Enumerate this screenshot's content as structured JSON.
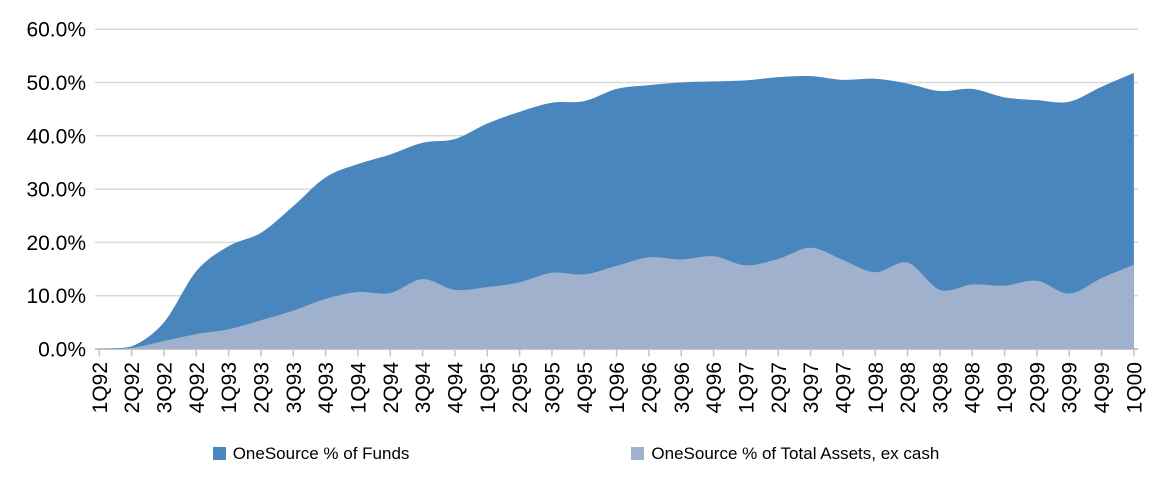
{
  "chart_data": {
    "type": "area",
    "overlap": true,
    "title": "",
    "xlabel": "",
    "ylabel": "",
    "ylim": [
      0,
      60
    ],
    "grid": true,
    "legend_position": "bottom",
    "categories": [
      "1Q92",
      "2Q92",
      "3Q92",
      "4Q92",
      "1Q93",
      "2Q93",
      "3Q93",
      "4Q93",
      "1Q94",
      "2Q94",
      "3Q94",
      "4Q94",
      "1Q95",
      "2Q95",
      "3Q95",
      "4Q95",
      "1Q96",
      "2Q96",
      "3Q96",
      "4Q96",
      "1Q97",
      "2Q97",
      "3Q97",
      "4Q97",
      "1Q98",
      "2Q98",
      "3Q98",
      "4Q98",
      "1Q99",
      "2Q99",
      "3Q99",
      "4Q99",
      "1Q00"
    ],
    "series": [
      {
        "name": "OneSource % of Funds",
        "color": "#4A86BE",
        "values": [
          0,
          0.5,
          5,
          14.6,
          19.3,
          21.8,
          26.8,
          32.2,
          34.7,
          36.5,
          38.7,
          39.4,
          42.3,
          44.5,
          46.2,
          46.5,
          48.8,
          49.5,
          50,
          50.2,
          50.4,
          51,
          51.2,
          50.5,
          50.7,
          49.8,
          48.4,
          48.8,
          47.2,
          46.7,
          46.4,
          49.2,
          51.8
        ]
      },
      {
        "name": "OneSource % of Total Assets, ex cash",
        "color": "#A0B1CE",
        "values": [
          0,
          0.2,
          1.5,
          2.8,
          3.7,
          5.4,
          7.2,
          9.4,
          10.7,
          10.5,
          13.1,
          11.1,
          11.6,
          12.5,
          14.3,
          14,
          15.6,
          17.2,
          16.8,
          17.4,
          15.7,
          16.9,
          19,
          16.7,
          14.4,
          16.2,
          11.1,
          12.1,
          11.9,
          12.8,
          10.4,
          13.3,
          15.8
        ]
      }
    ],
    "y_ticks": [
      {
        "value": 0,
        "label": "0.0%"
      },
      {
        "value": 10,
        "label": "10.0%"
      },
      {
        "value": 20,
        "label": "20.0%"
      },
      {
        "value": 30,
        "label": "30.0%"
      },
      {
        "value": 40,
        "label": "40.0%"
      },
      {
        "value": 50,
        "label": "50.0%"
      },
      {
        "value": 60,
        "label": "60.0%"
      }
    ],
    "grid_color": "#D9D9D9",
    "axis_color": "#C6C6C6",
    "text_color": "#000000"
  }
}
